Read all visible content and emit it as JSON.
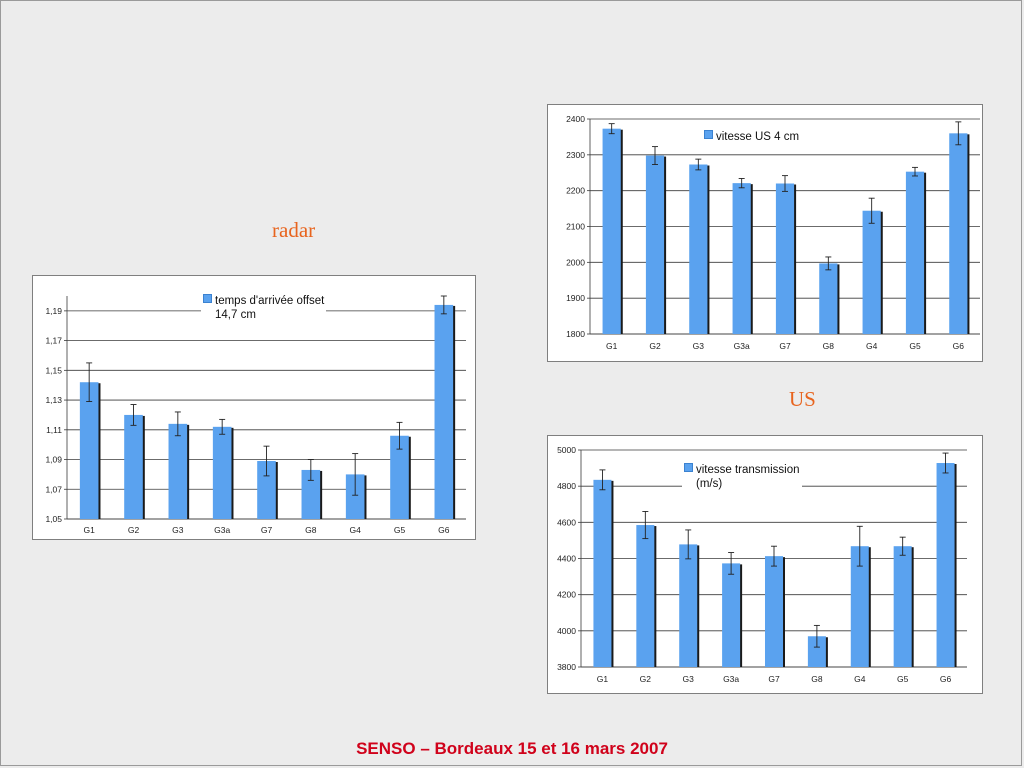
{
  "slide": {
    "caption_radar": "radar",
    "caption_us": "US",
    "footer": "SENSO – Bordeaux 15 et 16 mars 2007"
  },
  "colors": {
    "bar": "#5aa2ef",
    "bar_shadow": "#1a1a1a",
    "footer": "#d0021b",
    "caption": "#e8641e"
  },
  "chart_data": [
    {
      "type": "bar",
      "categories": [
        "G1",
        "G2",
        "G3",
        "G3a",
        "G7",
        "G8",
        "G4",
        "G5",
        "G6"
      ],
      "series": [
        {
          "name": "temps d'arrivée offset 14,7 cm",
          "values": [
            1.142,
            1.12,
            1.114,
            1.112,
            1.089,
            1.083,
            1.08,
            1.106,
            1.194
          ],
          "errors": [
            0.013,
            0.007,
            0.008,
            0.005,
            0.01,
            0.007,
            0.014,
            0.009,
            0.006
          ]
        }
      ],
      "ylim": [
        1.05,
        1.2
      ],
      "yticks": [
        1.05,
        1.07,
        1.09,
        1.11,
        1.13,
        1.15,
        1.17,
        1.19
      ],
      "ytick_labels": [
        "1,05",
        "1,07",
        "1,09",
        "1,11",
        "1,13",
        "1,15",
        "1,17",
        "1,19"
      ],
      "legend_lines": [
        "temps d'arrivée offset",
        "14,7 cm"
      ],
      "grid": true,
      "legend": "top-center"
    },
    {
      "type": "bar",
      "categories": [
        "G1",
        "G2",
        "G3",
        "G3a",
        "G7",
        "G8",
        "G4",
        "G5",
        "G6"
      ],
      "series": [
        {
          "name": "vitesse  US 4 cm",
          "values": [
            2373,
            2298,
            2273,
            2221,
            2220,
            1997,
            2144,
            2253,
            2360
          ],
          "errors": [
            14,
            25,
            15,
            13,
            22,
            18,
            35,
            12,
            32
          ]
        }
      ],
      "ylim": [
        1800,
        2400
      ],
      "yticks": [
        1800,
        1900,
        2000,
        2100,
        2200,
        2300,
        2400
      ],
      "ytick_labels": [
        "1800",
        "1900",
        "2000",
        "2100",
        "2200",
        "2300",
        "2400"
      ],
      "legend_lines": [
        "vitesse  US 4 cm"
      ],
      "grid": true,
      "legend": "top-center"
    },
    {
      "type": "bar",
      "categories": [
        "G1",
        "G2",
        "G3",
        "G3a",
        "G7",
        "G8",
        "G4",
        "G5",
        "G6"
      ],
      "series": [
        {
          "name": "vitesse transmission (m/s)",
          "values": [
            4835,
            4585,
            4478,
            4373,
            4413,
            3970,
            4468,
            4468,
            4928
          ],
          "errors": [
            55,
            75,
            80,
            60,
            55,
            60,
            110,
            50,
            55
          ]
        }
      ],
      "ylim": [
        3800,
        5000
      ],
      "yticks": [
        3800,
        4000,
        4200,
        4400,
        4600,
        4800,
        5000
      ],
      "ytick_labels": [
        "3800",
        "4000",
        "4200",
        "4400",
        "4600",
        "4800",
        "5000"
      ],
      "legend_lines": [
        "vitesse transmission",
        "(m/s)"
      ],
      "grid": true,
      "legend": "top-center"
    }
  ]
}
